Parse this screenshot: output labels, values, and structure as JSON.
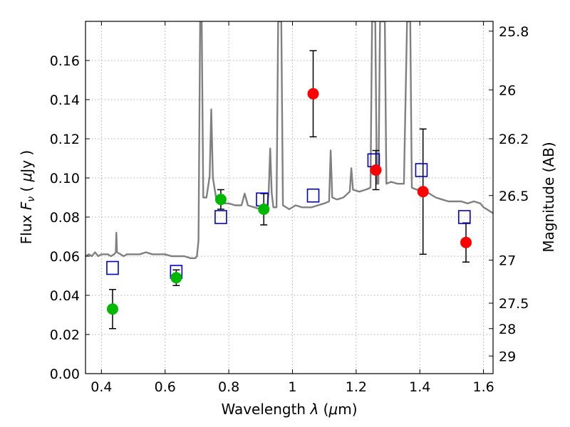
{
  "chart_data": {
    "type": "scatter",
    "xlabel_parts": [
      "Wavelength  ",
      "λ",
      " (",
      "μ",
      "m)"
    ],
    "ylabel_parts": [
      "Flux  ",
      "F",
      "ν",
      "  ( ",
      "μ",
      "Jy )"
    ],
    "y2label": "Magnitude (AB)",
    "xlim": [
      0.35,
      1.63
    ],
    "ylim": [
      0.0,
      0.18
    ],
    "grid": true,
    "xticks": [
      0.4,
      0.6,
      0.8,
      1.0,
      1.2,
      1.4,
      1.6
    ],
    "xtick_labels": [
      "0.4",
      "0.6",
      "0.8",
      "1",
      "1.2",
      "1.4",
      "1.6"
    ],
    "yticks": [
      0.0,
      0.02,
      0.04,
      0.06,
      0.08,
      0.1,
      0.12,
      0.14,
      0.16
    ],
    "ytick_labels": [
      "0.00",
      "0.02",
      "0.04",
      "0.06",
      "0.08",
      "0.10",
      "0.12",
      "0.14",
      "0.16"
    ],
    "right_axis_ticks": [
      {
        "label": "25.8",
        "flux": 0.175
      },
      {
        "label": "26",
        "flux": 0.145
      },
      {
        "label": "26.2",
        "flux": 0.12
      },
      {
        "label": "26.5",
        "flux": 0.091
      },
      {
        "label": "27",
        "flux": 0.058
      },
      {
        "label": "27.5",
        "flux": 0.036
      },
      {
        "label": "28",
        "flux": 0.023
      },
      {
        "label": "29",
        "flux": 0.009
      }
    ],
    "series": [
      {
        "marker": "circle",
        "color": "#00b800",
        "points": [
          {
            "x": 0.435,
            "y": 0.033,
            "err": 0.01
          },
          {
            "x": 0.635,
            "y": 0.049,
            "err": 0.004
          },
          {
            "x": 0.775,
            "y": 0.089,
            "err": 0.005
          },
          {
            "x": 0.91,
            "y": 0.084,
            "err": 0.008
          }
        ]
      },
      {
        "marker": "circle",
        "color": "#ff0000",
        "points": [
          {
            "x": 1.065,
            "y": 0.143,
            "err": 0.022
          },
          {
            "x": 1.262,
            "y": 0.104,
            "err": 0.01
          },
          {
            "x": 1.41,
            "y": 0.093,
            "err": 0.032
          },
          {
            "x": 1.545,
            "y": 0.067,
            "err": 0.01
          }
        ]
      },
      {
        "marker": "open-square",
        "color": "#0000cc",
        "points": [
          {
            "x": 0.435,
            "y": 0.054
          },
          {
            "x": 0.635,
            "y": 0.052
          },
          {
            "x": 0.775,
            "y": 0.08
          },
          {
            "x": 0.905,
            "y": 0.089
          },
          {
            "x": 1.065,
            "y": 0.091
          },
          {
            "x": 1.255,
            "y": 0.109
          },
          {
            "x": 1.405,
            "y": 0.104
          },
          {
            "x": 1.54,
            "y": 0.08
          }
        ]
      },
      {
        "type": "line",
        "color": "#808080",
        "points": [
          [
            0.35,
            0.06
          ],
          [
            0.36,
            0.061
          ],
          [
            0.37,
            0.06
          ],
          [
            0.38,
            0.062
          ],
          [
            0.39,
            0.06
          ],
          [
            0.4,
            0.061
          ],
          [
            0.41,
            0.061
          ],
          [
            0.42,
            0.061
          ],
          [
            0.43,
            0.06
          ],
          [
            0.44,
            0.061
          ],
          [
            0.445,
            0.062
          ],
          [
            0.447,
            0.072
          ],
          [
            0.449,
            0.062
          ],
          [
            0.46,
            0.061
          ],
          [
            0.47,
            0.06
          ],
          [
            0.48,
            0.061
          ],
          [
            0.5,
            0.061
          ],
          [
            0.52,
            0.061
          ],
          [
            0.54,
            0.062
          ],
          [
            0.56,
            0.061
          ],
          [
            0.58,
            0.061
          ],
          [
            0.6,
            0.061
          ],
          [
            0.62,
            0.06
          ],
          [
            0.64,
            0.06
          ],
          [
            0.66,
            0.06
          ],
          [
            0.68,
            0.059
          ],
          [
            0.695,
            0.059
          ],
          [
            0.7,
            0.06
          ],
          [
            0.705,
            0.068
          ],
          [
            0.71,
            0.18
          ],
          [
            0.715,
            0.18
          ],
          [
            0.72,
            0.09
          ],
          [
            0.73,
            0.09
          ],
          [
            0.74,
            0.101
          ],
          [
            0.745,
            0.135
          ],
          [
            0.75,
            0.1
          ],
          [
            0.76,
            0.09
          ],
          [
            0.77,
            0.09
          ],
          [
            0.78,
            0.087
          ],
          [
            0.8,
            0.087
          ],
          [
            0.82,
            0.086
          ],
          [
            0.84,
            0.086
          ],
          [
            0.85,
            0.092
          ],
          [
            0.86,
            0.086
          ],
          [
            0.88,
            0.085
          ],
          [
            0.9,
            0.084
          ],
          [
            0.92,
            0.084
          ],
          [
            0.925,
            0.092
          ],
          [
            0.93,
            0.115
          ],
          [
            0.935,
            0.092
          ],
          [
            0.94,
            0.085
          ],
          [
            0.95,
            0.085
          ],
          [
            0.955,
            0.18
          ],
          [
            0.965,
            0.18
          ],
          [
            0.97,
            0.086
          ],
          [
            0.99,
            0.084
          ],
          [
            1.01,
            0.086
          ],
          [
            1.03,
            0.085
          ],
          [
            1.06,
            0.085
          ],
          [
            1.08,
            0.086
          ],
          [
            1.1,
            0.087
          ],
          [
            1.115,
            0.088
          ],
          [
            1.12,
            0.114
          ],
          [
            1.125,
            0.09
          ],
          [
            1.14,
            0.089
          ],
          [
            1.16,
            0.09
          ],
          [
            1.18,
            0.093
          ],
          [
            1.185,
            0.105
          ],
          [
            1.19,
            0.094
          ],
          [
            1.21,
            0.093
          ],
          [
            1.23,
            0.094
          ],
          [
            1.245,
            0.095
          ],
          [
            1.25,
            0.18
          ],
          [
            1.26,
            0.18
          ],
          [
            1.265,
            0.097
          ],
          [
            1.27,
            0.097
          ],
          [
            1.275,
            0.18
          ],
          [
            1.29,
            0.18
          ],
          [
            1.295,
            0.097
          ],
          [
            1.31,
            0.098
          ],
          [
            1.33,
            0.097
          ],
          [
            1.35,
            0.097
          ],
          [
            1.36,
            0.18
          ],
          [
            1.37,
            0.18
          ],
          [
            1.375,
            0.095
          ],
          [
            1.39,
            0.094
          ],
          [
            1.41,
            0.094
          ],
          [
            1.43,
            0.092
          ],
          [
            1.45,
            0.09
          ],
          [
            1.47,
            0.089
          ],
          [
            1.49,
            0.088
          ],
          [
            1.51,
            0.088
          ],
          [
            1.53,
            0.088
          ],
          [
            1.55,
            0.087
          ],
          [
            1.57,
            0.088
          ],
          [
            1.59,
            0.087
          ],
          [
            1.6,
            0.085
          ],
          [
            1.61,
            0.084
          ],
          [
            1.62,
            0.083
          ],
          [
            1.63,
            0.082
          ]
        ]
      }
    ]
  }
}
